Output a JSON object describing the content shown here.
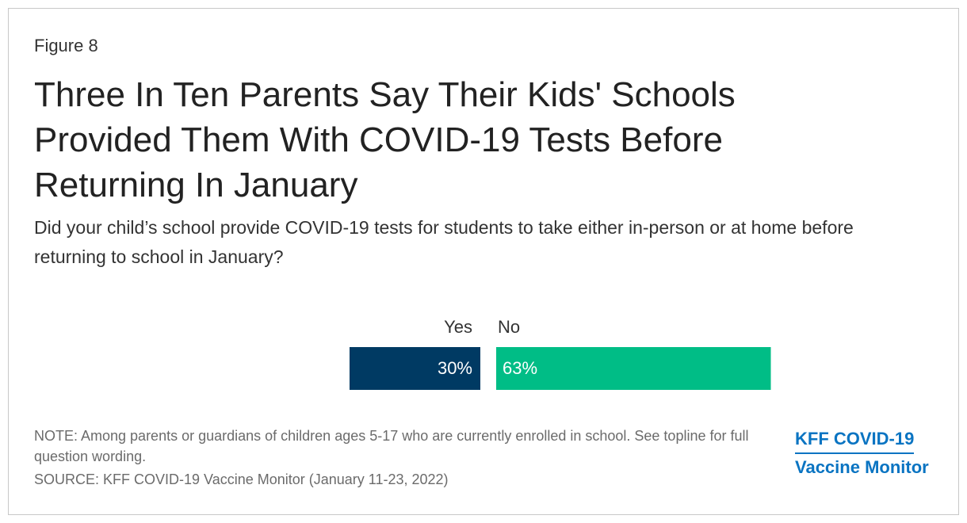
{
  "chart_data": {
    "type": "bar",
    "figure_label": "Figure 8",
    "title": "Three In Ten Parents Say Their Kids' Schools Provided Them With COVID-19 Tests Before Returning In January",
    "subtitle": "Did your child’s school provide COVID-19 tests for students to take either in-person or at home before returning to school in January?",
    "categories": [
      "Yes",
      "No"
    ],
    "values": [
      30,
      63
    ],
    "value_labels": [
      "30%",
      "63%"
    ],
    "colors": [
      "#003a63",
      "#00bd86"
    ],
    "note": "NOTE: Among parents or guardians of children ages 5-17 who are currently enrolled in school. See topline for full question wording.",
    "source": "SOURCE: KFF COVID-19 Vaccine Monitor (January 11-23, 2022)",
    "logo": [
      "KFF COVID-19",
      "Vaccine Monitor"
    ]
  }
}
